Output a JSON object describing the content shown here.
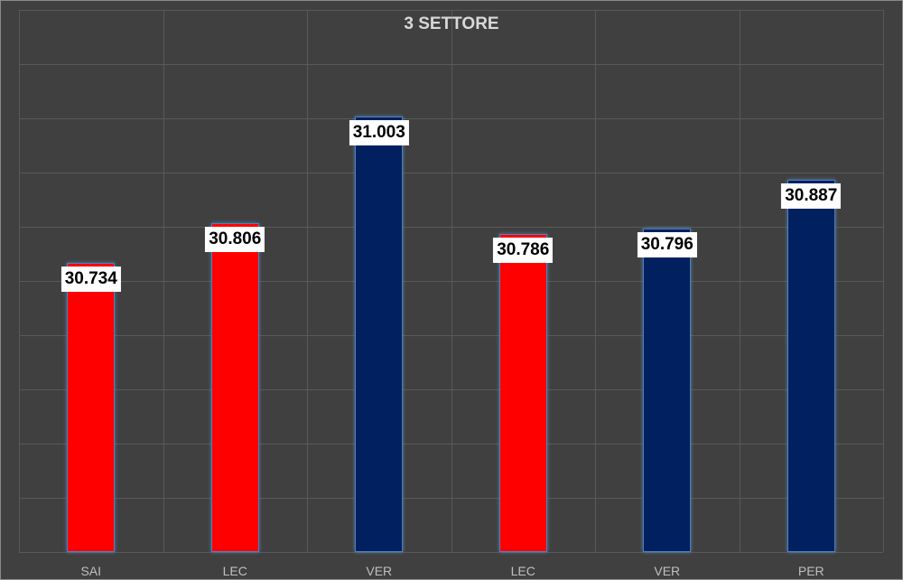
{
  "chart_data": {
    "type": "bar",
    "title": "3 SETTORE",
    "categories": [
      "SAI",
      "LEC",
      "VER",
      "LEC",
      "VER",
      "PER"
    ],
    "values": [
      30.734,
      30.806,
      31.003,
      30.786,
      30.796,
      30.887
    ],
    "value_labels": [
      "30.734",
      "30.806",
      "31.003",
      "30.786",
      "30.796",
      "30.887"
    ],
    "bar_colors": [
      "#FF0000",
      "#FF0000",
      "#002060",
      "#FF0000",
      "#002060",
      "#002060"
    ],
    "xlabel": "",
    "ylabel": "",
    "ylim": [
      30.2,
      31.2
    ],
    "y_gridlines": 10,
    "grid": true,
    "legend": null
  },
  "colors": {
    "background": "#404040",
    "grid": "#595959",
    "title": "#d9d9d9",
    "tick": "#bfbfbf",
    "label_bg": "#ffffff"
  }
}
